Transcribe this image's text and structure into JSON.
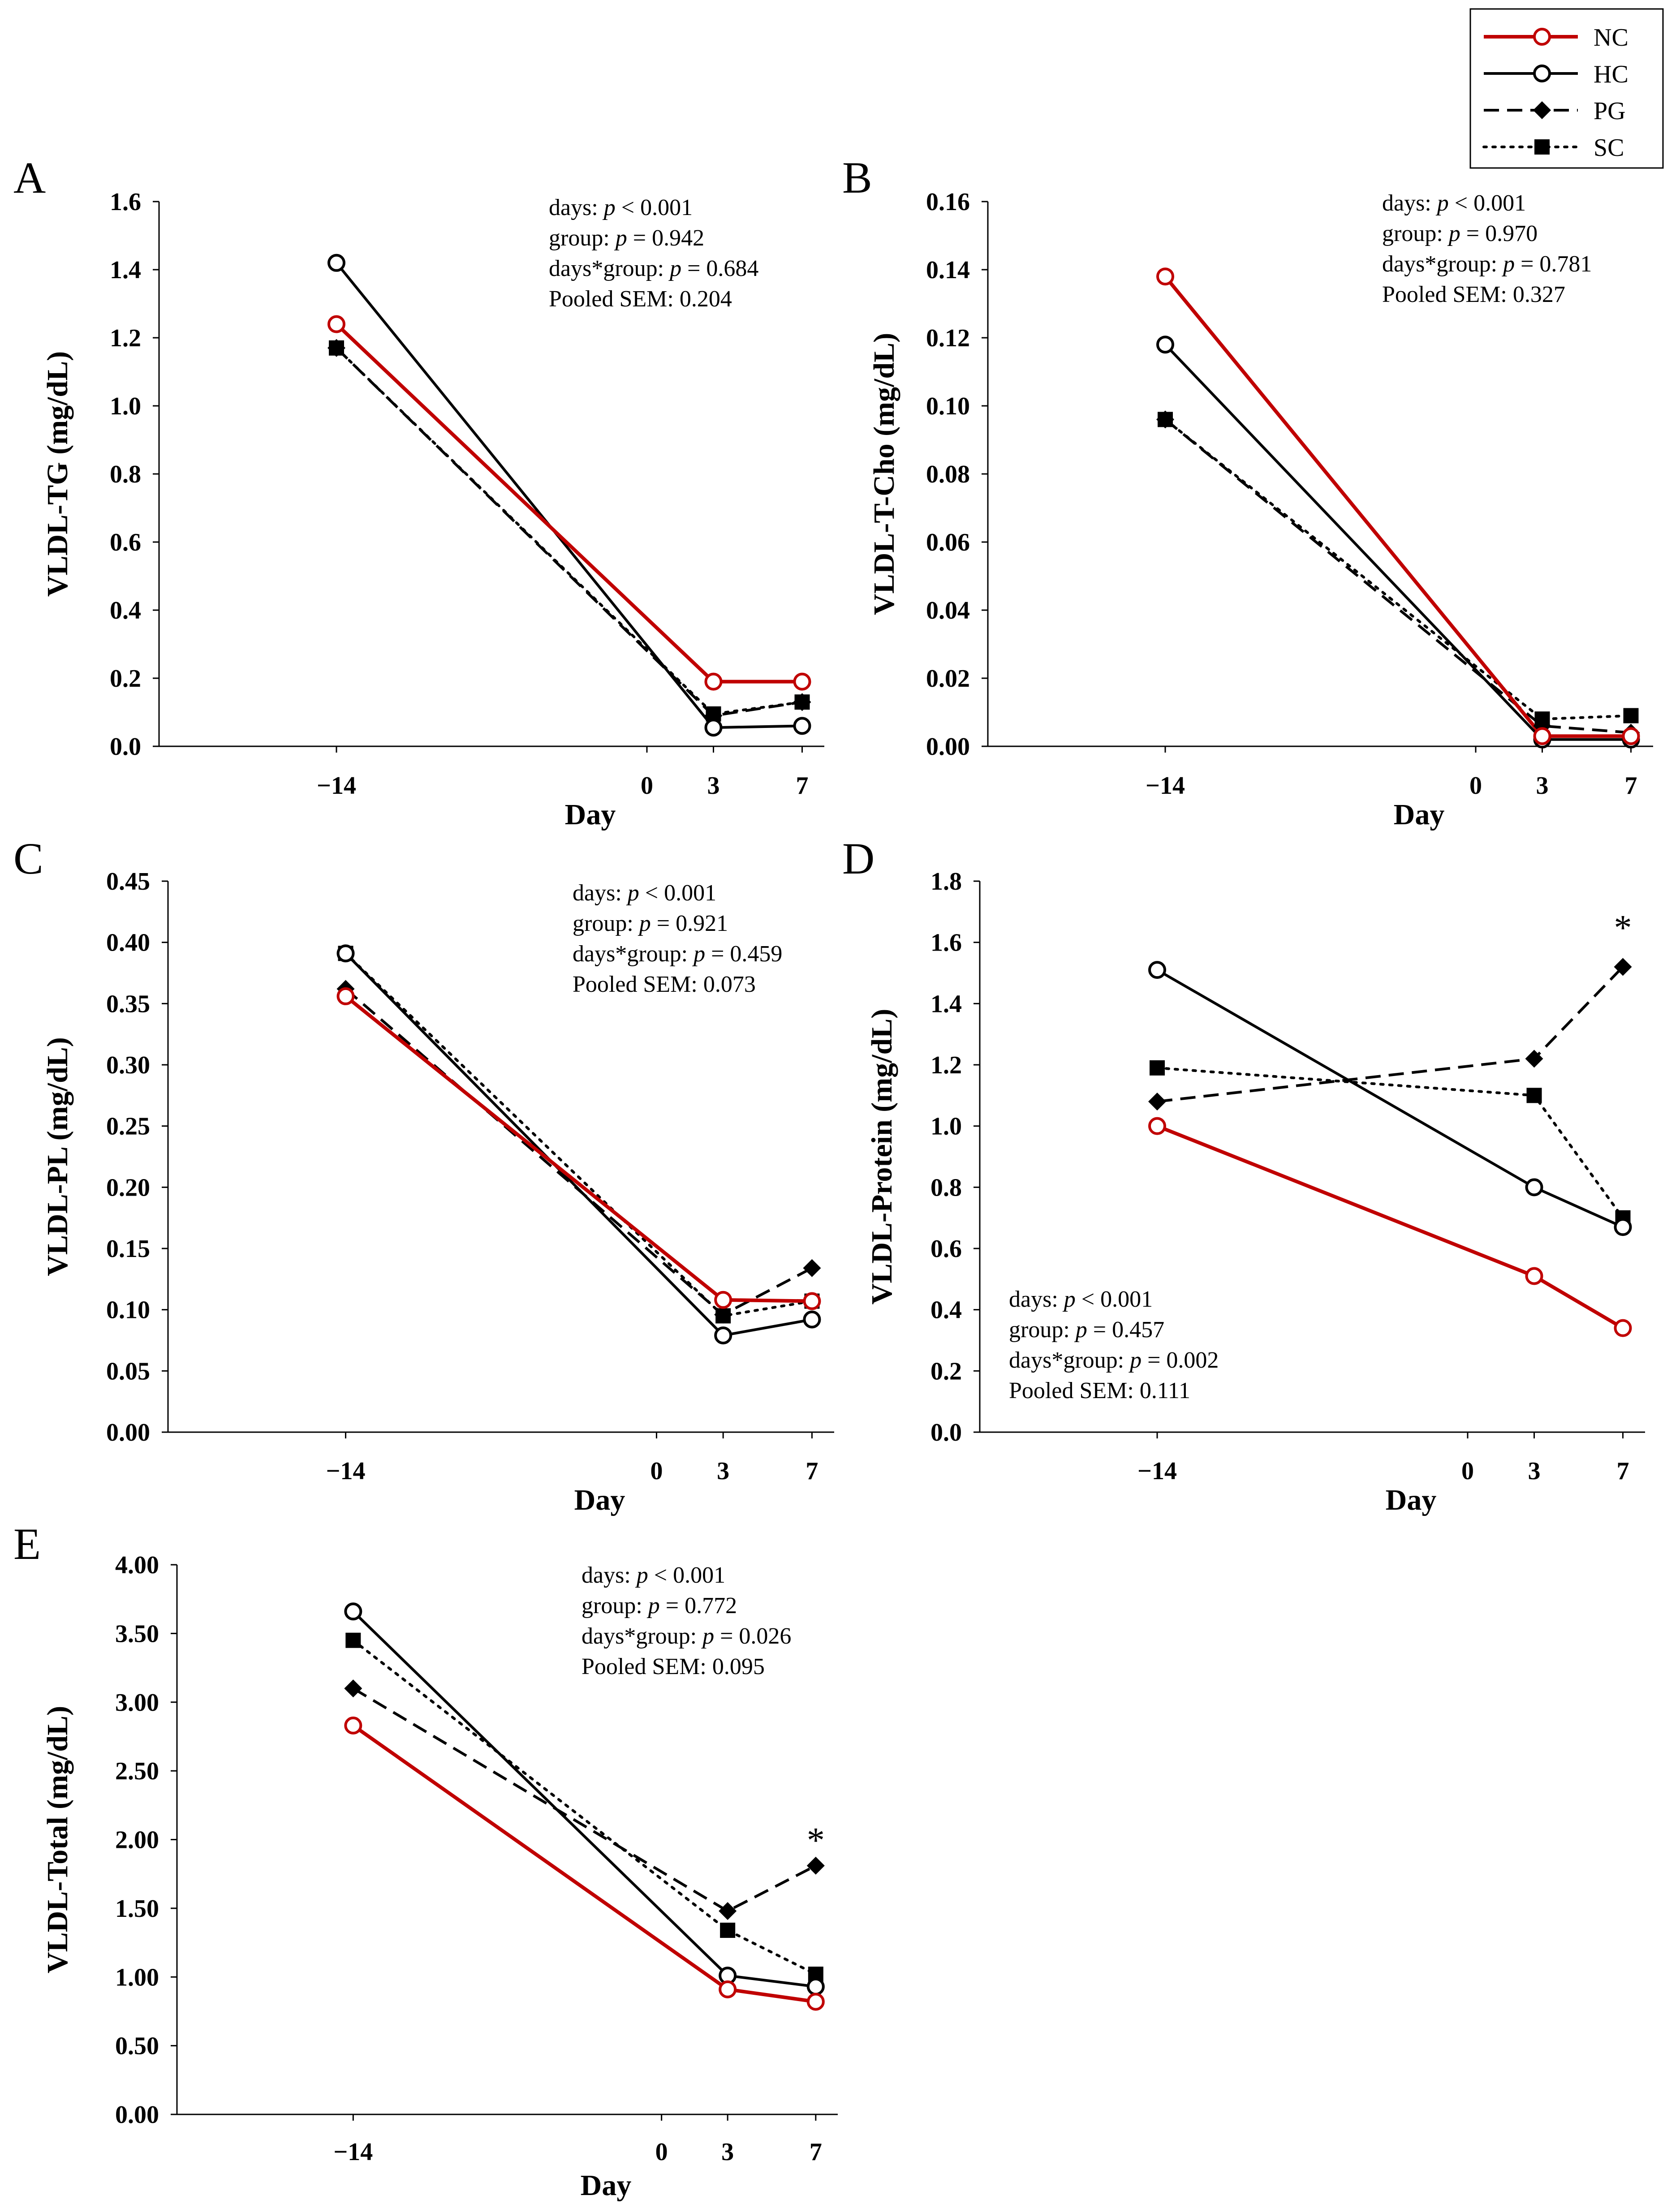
{
  "legend": {
    "position": "top-right",
    "entries": [
      {
        "key": "NC",
        "label": "NC",
        "color": "#c00000",
        "marker": "open-circle",
        "dash": "solid"
      },
      {
        "key": "HC",
        "label": "HC",
        "color": "#000000",
        "marker": "open-circle",
        "dash": "solid"
      },
      {
        "key": "PG",
        "label": "PG",
        "color": "#000000",
        "marker": "diamond",
        "dash": "dashed"
      },
      {
        "key": "SC",
        "label": "SC",
        "color": "#000000",
        "marker": "square",
        "dash": "dotted"
      }
    ]
  },
  "chart_data": [
    {
      "type": "line",
      "panel": "A",
      "ylabel": "VLDL-TG  (mg/dL)",
      "xlabel": "Day",
      "ylim": [
        0,
        1.6
      ],
      "ytick_values": [
        0,
        0.2,
        0.4,
        0.6,
        0.8,
        1.0,
        1.2,
        1.4,
        1.6
      ],
      "ytick_labels": [
        "0.0",
        "0.2",
        "0.4",
        "0.6",
        "0.8",
        "1.0",
        "1.2",
        "1.4",
        "1.6"
      ],
      "xlim": [
        -22,
        8
      ],
      "xtick_values": [
        -14,
        0,
        3,
        7
      ],
      "xtick_labels": [
        "−14",
        "0",
        "3",
        "7"
      ],
      "x": [
        -14,
        3,
        7
      ],
      "series": [
        {
          "name": "NC",
          "values": [
            1.24,
            0.19,
            0.19
          ]
        },
        {
          "name": "HC",
          "values": [
            1.42,
            0.055,
            0.06
          ]
        },
        {
          "name": "PG",
          "values": [
            1.17,
            0.09,
            0.13
          ]
        },
        {
          "name": "SC",
          "values": [
            1.17,
            0.095,
            0.13
          ]
        }
      ],
      "stats": [
        "days: ",
        "p",
        " < 0.001",
        "group: ",
        "p",
        " = 0.942",
        "days*group: ",
        "p",
        " = 0.684",
        "Pooled SEM: 0.204"
      ],
      "stats_position": "top-right",
      "annotations": []
    },
    {
      "type": "line",
      "panel": "B",
      "ylabel": "VLDL-T-Cho  (mg/dL)",
      "xlabel": "Day",
      "ylim": [
        0,
        0.16
      ],
      "ytick_values": [
        0,
        0.02,
        0.04,
        0.06,
        0.08,
        0.1,
        0.12,
        0.14,
        0.16
      ],
      "ytick_labels": [
        "0.00",
        "0.02",
        "0.04",
        "0.06",
        "0.08",
        "0.10",
        "0.12",
        "0.14",
        "0.16"
      ],
      "xlim": [
        -22,
        8
      ],
      "xtick_values": [
        -14,
        0,
        3,
        7
      ],
      "xtick_labels": [
        "−14",
        "0",
        "3",
        "7"
      ],
      "x": [
        -14,
        3,
        7
      ],
      "series": [
        {
          "name": "NC",
          "values": [
            0.138,
            0.003,
            0.003
          ]
        },
        {
          "name": "HC",
          "values": [
            0.118,
            0.002,
            0.002
          ]
        },
        {
          "name": "PG",
          "values": [
            0.096,
            0.006,
            0.004
          ]
        },
        {
          "name": "SC",
          "values": [
            0.096,
            0.008,
            0.009
          ]
        }
      ],
      "stats": [
        "days: ",
        "p",
        " < 0.001",
        "group: ",
        "p",
        " = 0.970",
        "days*group: ",
        "p",
        " = 0.781",
        "Pooled SEM: 0.327"
      ],
      "stats_position": "top-right",
      "annotations": []
    },
    {
      "type": "line",
      "panel": "C",
      "ylabel": "VLDL-PL  (mg/dL)",
      "xlabel": "Day",
      "ylim": [
        0,
        0.45
      ],
      "ytick_values": [
        0,
        0.05,
        0.1,
        0.15,
        0.2,
        0.25,
        0.3,
        0.35,
        0.4,
        0.45
      ],
      "ytick_labels": [
        "0.00",
        "0.05",
        "0.10",
        "0.15",
        "0.20",
        "0.25",
        "0.30",
        "0.35",
        "0.40",
        "0.45"
      ],
      "xlim": [
        -22,
        8
      ],
      "xtick_values": [
        -14,
        0,
        3,
        7
      ],
      "xtick_labels": [
        "−14",
        "0",
        "3",
        "7"
      ],
      "x": [
        -14,
        3,
        7
      ],
      "series": [
        {
          "name": "NC",
          "values": [
            0.356,
            0.108,
            0.107
          ]
        },
        {
          "name": "HC",
          "values": [
            0.391,
            0.079,
            0.092
          ]
        },
        {
          "name": "PG",
          "values": [
            0.362,
            0.096,
            0.134
          ]
        },
        {
          "name": "SC",
          "values": [
            0.391,
            0.095,
            0.107
          ]
        }
      ],
      "stats": [
        "days: ",
        "p",
        " < 0.001",
        "group: ",
        "p",
        " = 0.921",
        "days*group: ",
        "p",
        " = 0.459",
        "Pooled SEM: 0.073"
      ],
      "stats_position": "top-right",
      "annotations": []
    },
    {
      "type": "line",
      "panel": "D",
      "ylabel": "VLDL-Protein  (mg/dL)",
      "xlabel": "Day",
      "ylim": [
        0,
        1.8
      ],
      "ytick_values": [
        0,
        0.2,
        0.4,
        0.6,
        0.8,
        1.0,
        1.2,
        1.4,
        1.6,
        1.8
      ],
      "ytick_labels": [
        "0.0",
        "0.2",
        "0.4",
        "0.6",
        "0.8",
        "1.0",
        "1.2",
        "1.4",
        "1.6",
        "1.8"
      ],
      "xlim": [
        -22,
        8
      ],
      "xtick_values": [
        -14,
        0,
        3,
        7
      ],
      "xtick_labels": [
        "−14",
        "0",
        "3",
        "7"
      ],
      "x": [
        -14,
        3,
        7
      ],
      "series": [
        {
          "name": "NC",
          "values": [
            1.0,
            0.51,
            0.34
          ]
        },
        {
          "name": "HC",
          "values": [
            1.51,
            0.8,
            0.67
          ]
        },
        {
          "name": "PG",
          "values": [
            1.08,
            1.22,
            1.52
          ]
        },
        {
          "name": "SC",
          "values": [
            1.19,
            1.1,
            0.7
          ]
        }
      ],
      "stats": [
        "days: ",
        "p",
        " < 0.001",
        "group: ",
        "p",
        " = 0.457",
        "days*group: ",
        "p",
        " = 0.002",
        "Pooled SEM: 0.111"
      ],
      "stats_position": "bottom-left",
      "annotations": [
        {
          "text": "*",
          "x": 7,
          "y": 1.65
        }
      ]
    },
    {
      "type": "line",
      "panel": "E",
      "ylabel": "VLDL-Total  (mg/dL)",
      "xlabel": "Day",
      "ylim": [
        0,
        4.0
      ],
      "ytick_values": [
        0,
        0.5,
        1.0,
        1.5,
        2.0,
        2.5,
        3.0,
        3.5,
        4.0
      ],
      "ytick_labels": [
        "0.00",
        "0.50",
        "1.00",
        "1.50",
        "2.00",
        "2.50",
        "3.00",
        "3.50",
        "4.00"
      ],
      "xlim": [
        -22,
        8
      ],
      "xtick_values": [
        -14,
        0,
        3,
        7
      ],
      "xtick_labels": [
        "−14",
        "0",
        "3",
        "7"
      ],
      "x": [
        -14,
        3,
        7
      ],
      "series": [
        {
          "name": "NC",
          "values": [
            2.83,
            0.91,
            0.82
          ]
        },
        {
          "name": "HC",
          "values": [
            3.66,
            1.01,
            0.93
          ]
        },
        {
          "name": "PG",
          "values": [
            3.1,
            1.48,
            1.81
          ]
        },
        {
          "name": "SC",
          "values": [
            3.45,
            1.34,
            1.02
          ]
        }
      ],
      "stats": [
        "days: ",
        "p",
        " < 0.001",
        "group: ",
        "p",
        " = 0.772",
        "days*group: ",
        "p",
        " = 0.026",
        "Pooled SEM: 0.095"
      ],
      "stats_position": "top-right",
      "annotations": [
        {
          "text": "*",
          "x": 7,
          "y": 2.0
        }
      ]
    }
  ]
}
